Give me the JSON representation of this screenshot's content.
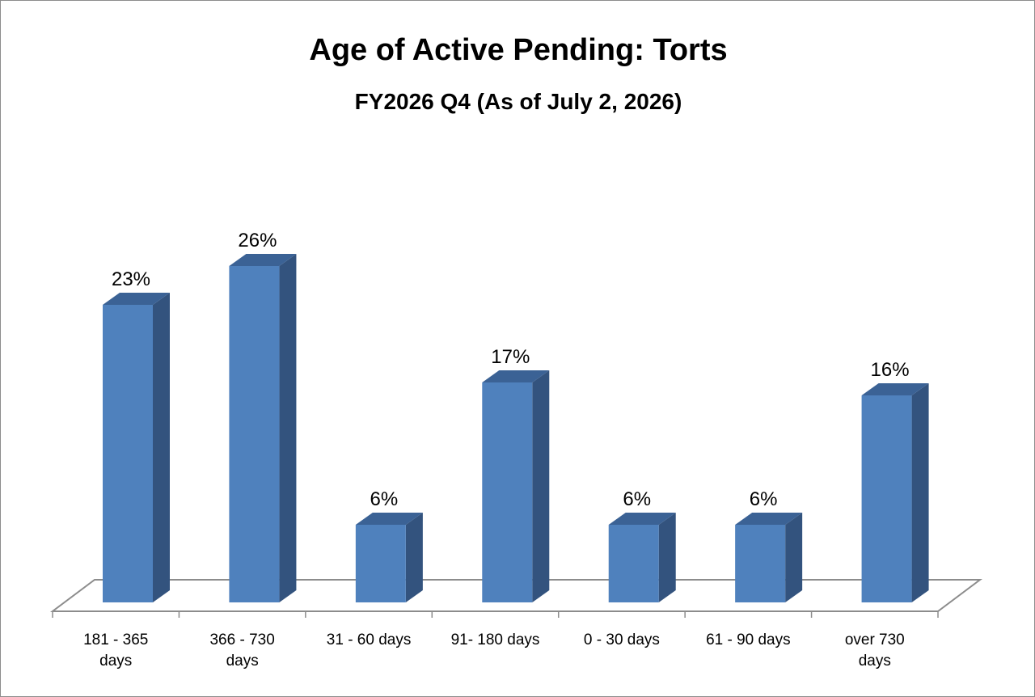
{
  "chart_data": {
    "type": "bar",
    "title": "Age of Active Pending: Torts",
    "subtitle": "FY2026 Q4 (As of July 2, 2026)",
    "categories": [
      [
        "181 - 365",
        "days"
      ],
      [
        "366 - 730",
        "days"
      ],
      [
        "31 - 60 days"
      ],
      [
        "91- 180 days"
      ],
      [
        "0 - 30 days"
      ],
      [
        "61 - 90 days"
      ],
      [
        "over 730",
        "days"
      ]
    ],
    "values": [
      23,
      26,
      6,
      17,
      6,
      6,
      16
    ],
    "data_labels": [
      "23%",
      "26%",
      "6%",
      "17%",
      "6%",
      "6%",
      "16%"
    ],
    "unit": "%",
    "ylim": [
      0,
      26
    ],
    "style": "3d-column",
    "grid": false,
    "legend": "none",
    "colors": {
      "bar_front": "#4f81bd",
      "bar_side": "#33537e",
      "bar_top": "#3b6295",
      "floor_line": "#8c8c8c"
    }
  }
}
